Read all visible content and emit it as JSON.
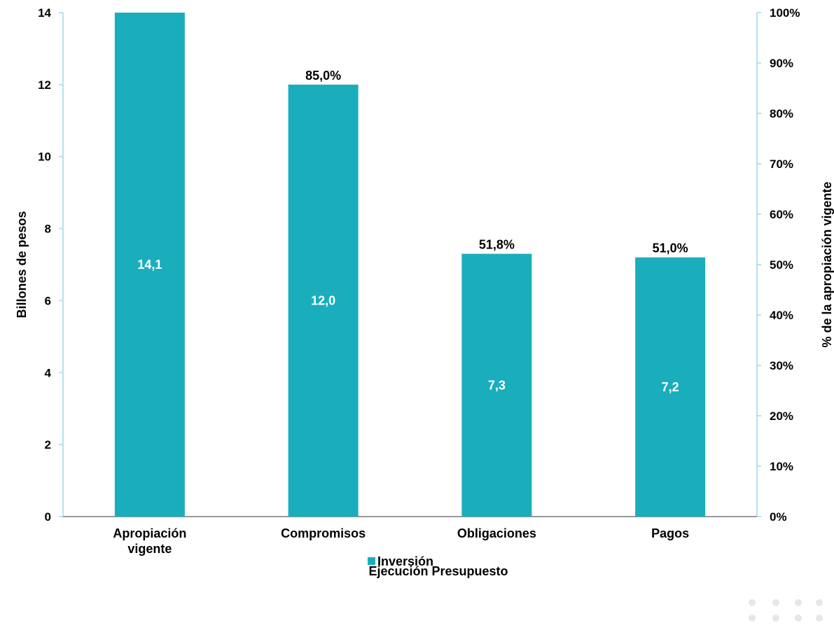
{
  "chart_data": {
    "type": "bar",
    "categories": [
      [
        "Apropiación",
        "vigente"
      ],
      [
        "Compromisos"
      ],
      [
        "Obligaciones"
      ],
      [
        "Pagos"
      ]
    ],
    "series": [
      {
        "name": "Inversión",
        "values": [
          14.1,
          12.0,
          7.3,
          7.2
        ],
        "value_labels": [
          "14,1",
          "12,0",
          "7,3",
          "7,2"
        ],
        "percent_labels": [
          "",
          "85,0%",
          "51,8%",
          "51,0%"
        ],
        "color": "#1aaebc"
      }
    ],
    "xlabel": "Ejecución Presupuesto",
    "ylabel": "Billones de pesos",
    "y2label": "% de la apropiación vigente",
    "ylim": [
      0,
      14
    ],
    "y2lim": [
      0,
      1
    ],
    "yticks": [
      {
        "v": 0,
        "label": "0"
      },
      {
        "v": 2,
        "label": "2"
      },
      {
        "v": 4,
        "label": "4"
      },
      {
        "v": 6,
        "label": "6"
      },
      {
        "v": 8,
        "label": "8"
      },
      {
        "v": 10,
        "label": "10"
      },
      {
        "v": 12,
        "label": "12"
      },
      {
        "v": 14,
        "label": "14"
      }
    ],
    "y2ticks": [
      {
        "v": 0.0,
        "label": "0%"
      },
      {
        "v": 0.1,
        "label": "10%"
      },
      {
        "v": 0.2,
        "label": "20%"
      },
      {
        "v": 0.3,
        "label": "30%"
      },
      {
        "v": 0.4,
        "label": "40%"
      },
      {
        "v": 0.5,
        "label": "50%"
      },
      {
        "v": 0.6,
        "label": "60%"
      },
      {
        "v": 0.7,
        "label": "70%"
      },
      {
        "v": 0.8,
        "label": "80%"
      },
      {
        "v": 0.9,
        "label": "90%"
      },
      {
        "v": 1.0,
        "label": "100%"
      }
    ],
    "grid": false,
    "legend": {
      "position": "bottom",
      "entries": [
        "Inversión"
      ]
    },
    "colors": {
      "bar": "#1aaebc",
      "axis_left": "#b9e0ec",
      "axis_right": "#b9e0ec",
      "axis_bottom": "#999999",
      "dots": "#e6e6ec"
    }
  }
}
